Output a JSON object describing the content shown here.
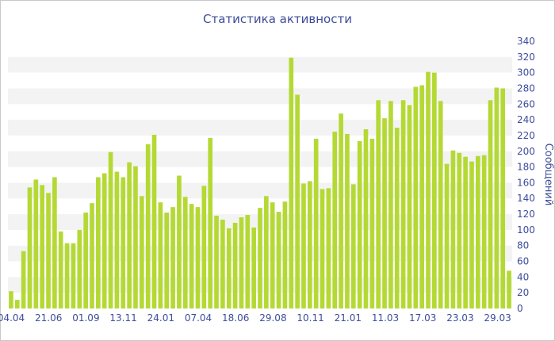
{
  "chart_data": {
    "type": "bar",
    "title": "Статистика активности",
    "xlabel": "",
    "ylabel": "Сообщений",
    "ylim": [
      0,
      340
    ],
    "y_ticks": [
      0,
      20,
      40,
      60,
      80,
      100,
      120,
      140,
      160,
      180,
      200,
      220,
      240,
      260,
      280,
      300,
      320,
      340
    ],
    "x_tick_labels": [
      "04.04",
      "21.06",
      "01.09",
      "13.11",
      "24.01",
      "07.04",
      "18.06",
      "29.08",
      "10.11",
      "21.01",
      "11.03",
      "17.03",
      "23.03",
      "29.03"
    ],
    "grid": "horizontal bands",
    "bar_color": "#b5d934",
    "values": [
      22,
      11,
      73,
      154,
      164,
      157,
      147,
      167,
      98,
      83,
      83,
      100,
      122,
      134,
      167,
      172,
      199,
      174,
      167,
      186,
      181,
      143,
      209,
      221,
      135,
      122,
      129,
      169,
      142,
      133,
      129,
      156,
      217,
      118,
      113,
      102,
      109,
      116,
      119,
      103,
      128,
      143,
      135,
      123,
      136,
      319,
      272,
      159,
      162,
      216,
      152,
      153,
      225,
      248,
      222,
      158,
      213,
      228,
      216,
      265,
      242,
      264,
      230,
      265,
      259,
      282,
      284,
      301,
      300,
      264,
      184,
      201,
      198,
      193,
      187,
      194,
      195,
      265,
      281,
      280,
      48
    ]
  }
}
